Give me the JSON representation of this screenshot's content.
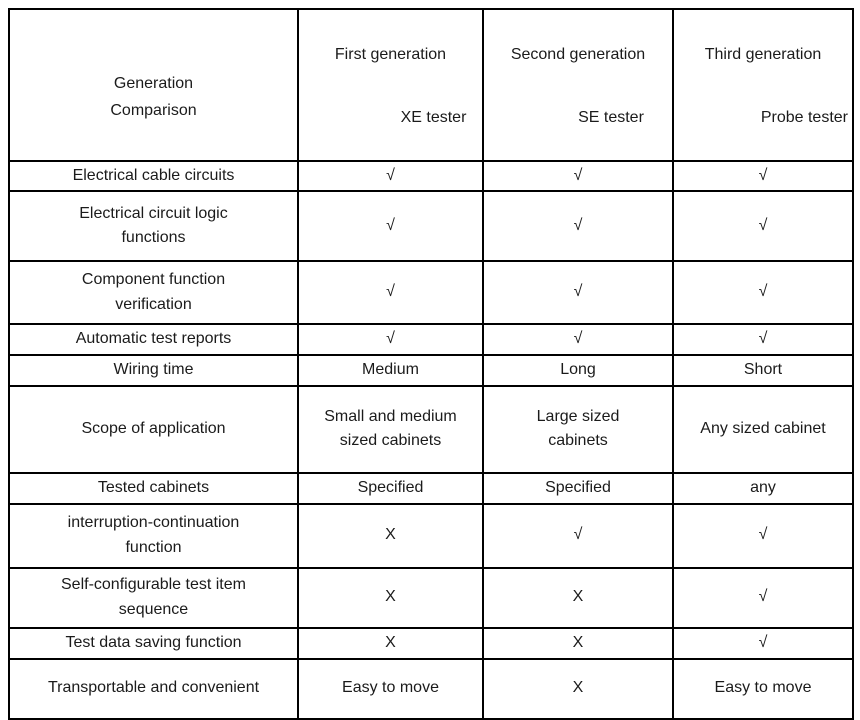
{
  "header": {
    "corner": "Generation\nComparison",
    "columns": [
      {
        "generation": "First generation",
        "tester": "XE tester"
      },
      {
        "generation": "Second generation",
        "tester": "SE tester"
      },
      {
        "generation": "Third generation",
        "tester": "Probe tester"
      }
    ]
  },
  "symbols": {
    "supported": "√",
    "not_supported": "X"
  },
  "rows": [
    {
      "label": "Electrical cable circuits",
      "values": [
        "√",
        "√",
        "√"
      ]
    },
    {
      "label": "Electrical circuit logic\nfunctions",
      "values": [
        "√",
        "√",
        "√"
      ]
    },
    {
      "label": "Component function\nverification",
      "values": [
        "√",
        "√",
        "√"
      ]
    },
    {
      "label": "Automatic test reports",
      "values": [
        "√",
        "√",
        "√"
      ]
    },
    {
      "label": "Wiring time",
      "values": [
        "Medium",
        "Long",
        "Short"
      ]
    },
    {
      "label": "Scope of application",
      "values": [
        "Small and medium\nsized cabinets",
        "Large sized\ncabinets",
        "Any sized cabinet"
      ]
    },
    {
      "label": "Tested cabinets",
      "values": [
        "Specified",
        "Specified",
        "any"
      ]
    },
    {
      "label": "interruption-continuation\nfunction",
      "values": [
        "X",
        "√",
        "√"
      ]
    },
    {
      "label": "Self-configurable test item\nsequence",
      "values": [
        "X",
        "X",
        "√"
      ]
    },
    {
      "label": "Test data saving function",
      "values": [
        "X",
        "X",
        "√"
      ]
    },
    {
      "label": "Transportable and convenient",
      "values": [
        "Easy to move",
        "X",
        "Easy to move"
      ]
    }
  ]
}
